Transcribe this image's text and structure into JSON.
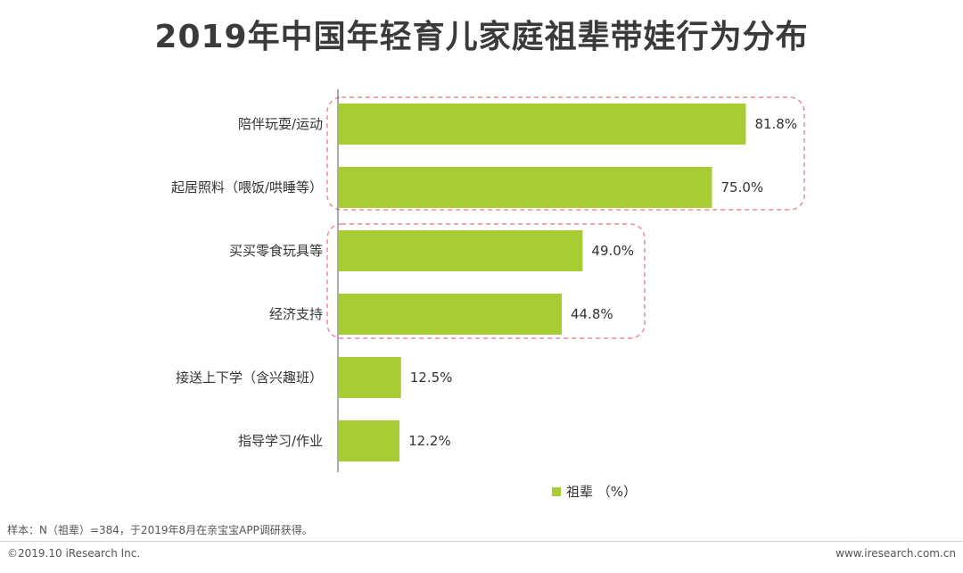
{
  "title": "2019年中国年轻育儿家庭祖辈带娃行为分布",
  "chart_data": {
    "type": "bar",
    "orientation": "horizontal",
    "categories": [
      "陪伴玩耍/运动",
      "起居照料（喂饭/哄睡等）",
      "买买零食玩具等",
      "经济支持",
      "接送上下学（含兴趣班）",
      "指导学习/作业"
    ],
    "series": [
      {
        "name": "祖辈 （%）",
        "values": [
          81.8,
          75.0,
          49.0,
          44.8,
          12.5,
          12.2
        ],
        "value_labels": [
          "81.8%",
          "75.0%",
          "49.0%",
          "44.8%",
          "12.5%",
          "12.2%"
        ],
        "color": "#a8cc34"
      }
    ],
    "xlim": [
      0,
      100
    ],
    "legend_position": "bottom",
    "highlight_groups": [
      {
        "categories": [
          "陪伴玩耍/运动",
          "起居照料（喂饭/哄睡等）"
        ],
        "style": "dashed-rounded",
        "color": "#f08a9a"
      },
      {
        "categories": [
          "买买零食玩具等",
          "经济支持"
        ],
        "style": "dashed-rounded",
        "color": "#f08a9a"
      }
    ]
  },
  "legend": {
    "label": "祖辈 （%）",
    "color": "#a8cc34"
  },
  "footer": {
    "note": "样本：N（祖辈）=384，于2019年8月在亲宝宝APP调研获得。",
    "copyright": "©2019.10 iResearch Inc.",
    "site": "www.iresearch.com.cn"
  }
}
